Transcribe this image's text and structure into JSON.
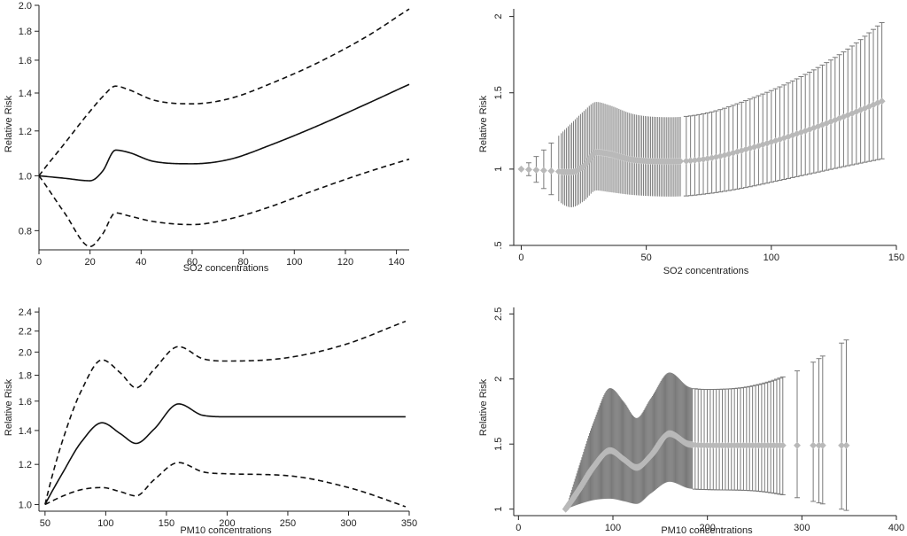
{
  "chart_data": [
    {
      "type": "line",
      "xlabel": "SO2 concentrations",
      "ylabel": "Relative Risk",
      "xlim": [
        0,
        145
      ],
      "ylim": [
        0.74,
        2.0
      ],
      "yscale": "log",
      "xticks": [
        0,
        20,
        40,
        60,
        80,
        100,
        120,
        140
      ],
      "xtick_labels": [
        "0",
        "20",
        "40",
        "60",
        "80",
        "100",
        "120",
        "140"
      ],
      "yticks": [
        0.8,
        1.0,
        1.2,
        1.4,
        1.6,
        1.8,
        2.0
      ],
      "ytick_labels": [
        "0.8",
        "1.0",
        "1.2",
        "1.4",
        "1.6",
        "1.8",
        "2.0"
      ],
      "x": [
        0,
        10,
        20,
        25,
        30,
        35,
        45,
        60,
        75,
        90,
        110,
        130,
        145
      ],
      "series": [
        {
          "style": "solid",
          "values": [
            1.0,
            0.99,
            0.98,
            1.02,
            1.11,
            1.1,
            1.06,
            1.05,
            1.07,
            1.13,
            1.23,
            1.35,
            1.45
          ]
        },
        {
          "style": "dashed",
          "values": [
            1.0,
            1.14,
            1.3,
            1.38,
            1.44,
            1.42,
            1.36,
            1.34,
            1.37,
            1.45,
            1.59,
            1.78,
            1.97
          ]
        },
        {
          "style": "dashed",
          "values": [
            1.0,
            0.86,
            0.75,
            0.79,
            0.86,
            0.85,
            0.83,
            0.82,
            0.84,
            0.88,
            0.95,
            1.02,
            1.07
          ]
        }
      ]
    },
    {
      "type": "scatter",
      "xlabel": "SO2 concentrations",
      "ylabel": "Relative Risk",
      "xlim": [
        -3,
        150
      ],
      "ylim": [
        0.5,
        2.05
      ],
      "xticks": [
        0,
        50,
        100,
        150
      ],
      "xtick_labels": [
        "0",
        "50",
        "100",
        "150"
      ],
      "yticks": [
        0.5,
        1,
        1.5,
        2
      ],
      "ytick_labels": [
        ".5",
        "1",
        "1.5",
        "2"
      ],
      "x": [
        0,
        10,
        20,
        25,
        30,
        35,
        45,
        60,
        75,
        90,
        110,
        130,
        145
      ],
      "estimate": [
        1.0,
        0.99,
        0.98,
        1.02,
        1.11,
        1.1,
        1.06,
        1.05,
        1.07,
        1.13,
        1.23,
        1.35,
        1.45
      ],
      "upper": [
        1.0,
        1.14,
        1.3,
        1.38,
        1.44,
        1.42,
        1.36,
        1.34,
        1.37,
        1.45,
        1.59,
        1.78,
        1.97
      ],
      "lower": [
        1.0,
        0.86,
        0.75,
        0.79,
        0.86,
        0.85,
        0.83,
        0.82,
        0.84,
        0.88,
        0.95,
        1.02,
        1.07
      ]
    },
    {
      "type": "line",
      "xlabel": "PM10 concentrations",
      "ylabel": "Relative Risk",
      "xlim": [
        45,
        350
      ],
      "ylim": [
        0.97,
        2.45
      ],
      "yscale": "log",
      "xticks": [
        50,
        100,
        150,
        200,
        250,
        300,
        350
      ],
      "xtick_labels": [
        "50",
        "100",
        "150",
        "200",
        "250",
        "300",
        "350"
      ],
      "yticks": [
        1.0,
        1.2,
        1.4,
        1.6,
        1.8,
        2.0,
        2.2,
        2.4
      ],
      "ytick_labels": [
        "1.0",
        "1.2",
        "1.4",
        "1.6",
        "1.8",
        "2.0",
        "2.2",
        "2.4"
      ],
      "x": [
        50,
        65,
        80,
        97,
        112,
        125,
        140,
        160,
        180,
        200,
        250,
        300,
        347
      ],
      "series": [
        {
          "style": "solid",
          "values": [
            1.0,
            1.16,
            1.33,
            1.45,
            1.38,
            1.32,
            1.41,
            1.58,
            1.5,
            1.49,
            1.49,
            1.49,
            1.49
          ]
        },
        {
          "style": "dashed",
          "values": [
            1.0,
            1.35,
            1.68,
            1.93,
            1.82,
            1.7,
            1.85,
            2.05,
            1.94,
            1.92,
            1.95,
            2.08,
            2.3
          ]
        },
        {
          "style": "dashed",
          "values": [
            1.0,
            1.04,
            1.07,
            1.08,
            1.06,
            1.04,
            1.12,
            1.21,
            1.16,
            1.15,
            1.14,
            1.08,
            0.99
          ]
        }
      ]
    },
    {
      "type": "scatter",
      "xlabel": "PM10 concentrations",
      "ylabel": "Relative Risk",
      "xlim": [
        -5,
        400
      ],
      "ylim": [
        0.95,
        2.55
      ],
      "xticks": [
        0,
        100,
        200,
        300,
        400
      ],
      "xtick_labels": [
        "0",
        "100",
        "200",
        "300",
        "400"
      ],
      "yticks": [
        1,
        1.5,
        2,
        2.5
      ],
      "ytick_labels": [
        "1",
        "1.5",
        "2",
        "2.5"
      ],
      "x": [
        50,
        65,
        80,
        97,
        112,
        125,
        140,
        160,
        180,
        200,
        250,
        300,
        347
      ],
      "estimate": [
        1.0,
        1.16,
        1.33,
        1.45,
        1.38,
        1.32,
        1.41,
        1.58,
        1.5,
        1.49,
        1.49,
        1.49,
        1.49
      ],
      "upper": [
        1.0,
        1.35,
        1.68,
        1.93,
        1.82,
        1.7,
        1.85,
        2.05,
        1.94,
        1.92,
        1.95,
        2.08,
        2.3
      ],
      "lower": [
        1.0,
        1.04,
        1.07,
        1.08,
        1.06,
        1.04,
        1.12,
        1.21,
        1.16,
        1.15,
        1.14,
        1.08,
        0.99
      ],
      "isolated_x": [
        295,
        312,
        318,
        322,
        342,
        347
      ]
    }
  ]
}
